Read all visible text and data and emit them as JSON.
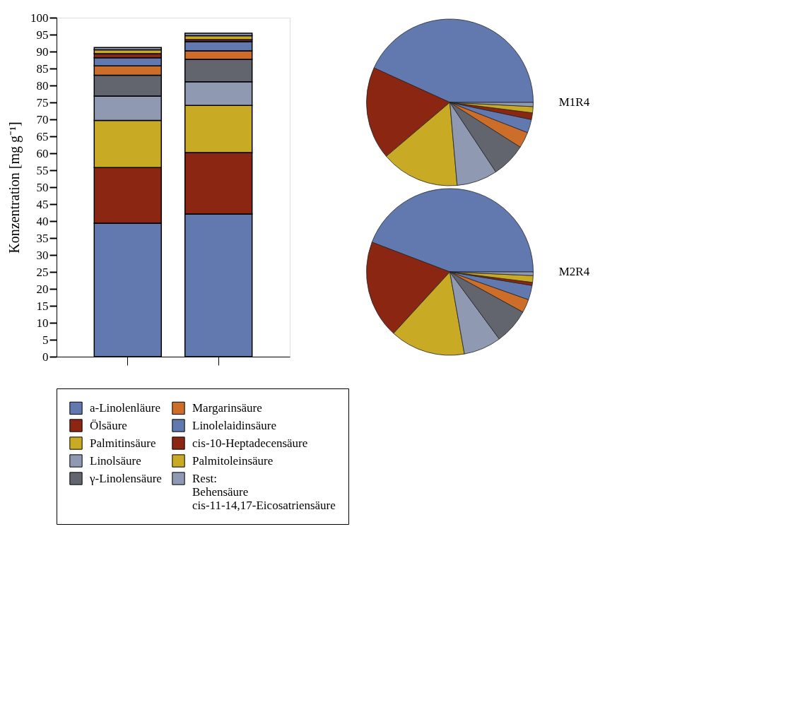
{
  "chart_data": [
    {
      "type": "bar",
      "stacked": true,
      "ylabel": "Konzentration [mg g⁻¹]",
      "categories": [
        null,
        null
      ],
      "ylim": [
        0,
        100
      ],
      "yticks": [
        0,
        5,
        10,
        15,
        20,
        25,
        30,
        35,
        40,
        45,
        50,
        55,
        60,
        65,
        70,
        75,
        80,
        85,
        90,
        95,
        100
      ],
      "legend": "bottom",
      "series": [
        {
          "name": "a-Linolenläure",
          "color": "#6279b0",
          "values": [
            39.4,
            42.1
          ]
        },
        {
          "name": "Ölsäure",
          "color": "#8b2612",
          "values": [
            16.4,
            18.1
          ]
        },
        {
          "name": "Palmitinsäure",
          "color": "#c8aa24",
          "values": [
            13.9,
            13.9
          ]
        },
        {
          "name": "Linolsäure",
          "color": "#8f99b1",
          "values": [
            7.2,
            7.0
          ]
        },
        {
          "name": "γ-Linolensäure",
          "color": "#62656d",
          "values": [
            6.1,
            6.6
          ]
        },
        {
          "name": "Margarinsäure",
          "color": "#cc6e2a",
          "values": [
            2.8,
            2.5
          ]
        },
        {
          "name": "Linolelaidinsäure",
          "color": "#6279b0",
          "values": [
            2.4,
            2.7
          ]
        },
        {
          "name": "cis-10-Heptadecensäure",
          "color": "#8b2612",
          "values": [
            1.2,
            0.6
          ]
        },
        {
          "name": "Palmitoleinsäure",
          "color": "#c8aa24",
          "values": [
            1.1,
            1.2
          ]
        },
        {
          "name": "Rest:\nBehensäure\ncis-11-14,17-Eicosatriensäure",
          "color": "#8f99b1",
          "values": [
            0.7,
            0.7
          ]
        }
      ]
    },
    {
      "type": "pie",
      "title": "M1R4",
      "legend": false,
      "categories": [
        null,
        null,
        null,
        null,
        null,
        null,
        null,
        null,
        null,
        null
      ],
      "values": [
        43.2,
        18.0,
        15.2,
        7.9,
        6.7,
        3.1,
        2.6,
        1.3,
        1.2,
        0.8
      ],
      "colors": [
        "#6279b0",
        "#8b2612",
        "#c8aa24",
        "#8f99b1",
        "#62656d",
        "#cc6e2a",
        "#6279b0",
        "#8b2612",
        "#c8aa24",
        "#8f99b1"
      ]
    },
    {
      "type": "pie",
      "title": "M2R4",
      "legend": false,
      "categories": [
        null,
        null,
        null,
        null,
        null,
        null,
        null,
        null,
        null,
        null
      ],
      "values": [
        44.2,
        19.0,
        14.6,
        7.3,
        6.9,
        2.6,
        2.8,
        0.6,
        1.3,
        0.7
      ],
      "colors": [
        "#6279b0",
        "#8b2612",
        "#c8aa24",
        "#8f99b1",
        "#62656d",
        "#cc6e2a",
        "#6279b0",
        "#8b2612",
        "#c8aa24",
        "#8f99b1"
      ]
    }
  ]
}
